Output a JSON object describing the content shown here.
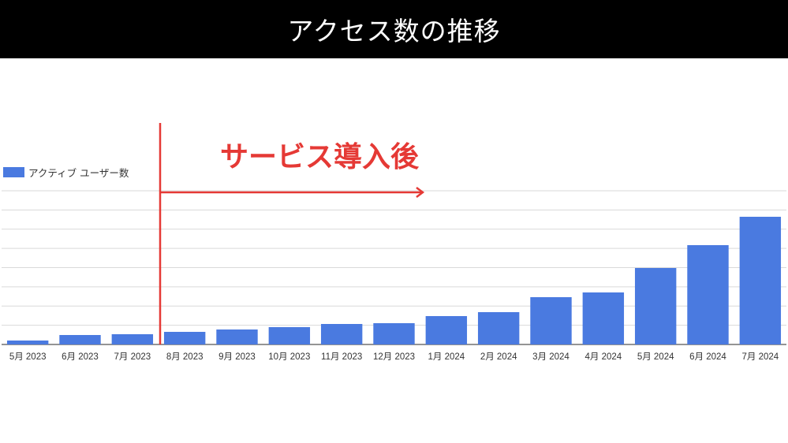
{
  "header": {
    "title": "アクセス数の推移"
  },
  "colors": {
    "bar": "#4a7ae0",
    "annotation": "#e53935",
    "grid": "#d9d9d9",
    "header_bg": "#000000"
  },
  "chart_data": {
    "type": "bar",
    "categories": [
      "5月 2023",
      "6月 2023",
      "7月 2023",
      "8月 2023",
      "9月 2023",
      "10月 2023",
      "11月 2023",
      "12月 2023",
      "1月 2024",
      "2月 2024",
      "3月 2024",
      "4月 2024",
      "5月 2024",
      "6月 2024",
      "7月 2024"
    ],
    "series": [
      {
        "name": "アクティブ ユーザー数",
        "values": [
          5,
          12,
          13,
          16,
          19,
          22,
          26,
          27,
          36,
          41,
          60,
          66,
          97,
          126,
          162
        ]
      }
    ],
    "ylim": [
      0,
      195
    ],
    "gridlines": 8,
    "legend": "top-left",
    "grid": true,
    "annotation": {
      "text": "サービス導入後",
      "start_category": "8月 2023",
      "arrow_end_category": "1月 2024"
    }
  }
}
